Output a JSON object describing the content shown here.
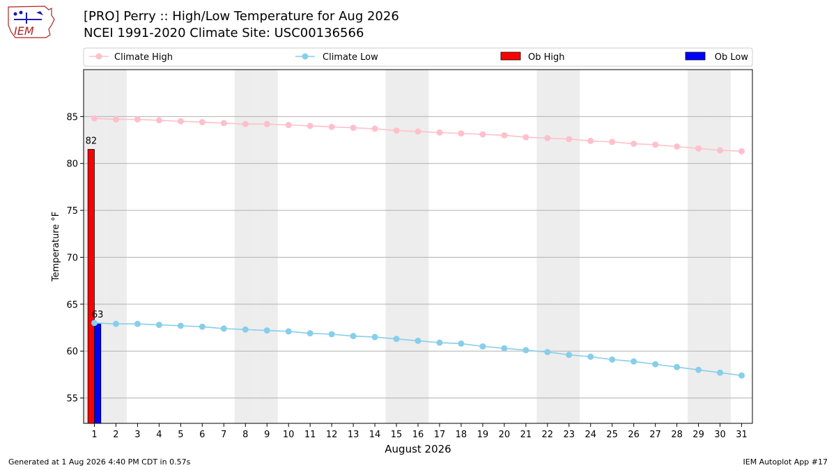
{
  "header": {
    "title_line1": "[PRO] Perry :: High/Low Temperature for Aug 2026",
    "title_line2": "NCEI 1991-2020 Climate Site: USC00136566",
    "logo_text": "IEM"
  },
  "footer": {
    "generated": "Generated at 1 Aug 2026 4:40 PM CDT in 0.57s",
    "app": "IEM Autoplot App #17"
  },
  "chart_data": {
    "type": "bar+line",
    "xlabel": "August 2026",
    "ylabel": "Temperature °F",
    "xlim": [
      0.5,
      31.5
    ],
    "ylim": [
      52.3,
      90.0
    ],
    "yticks": [
      55,
      60,
      65,
      70,
      75,
      80,
      85
    ],
    "days": [
      1,
      2,
      3,
      4,
      5,
      6,
      7,
      8,
      9,
      10,
      11,
      12,
      13,
      14,
      15,
      16,
      17,
      18,
      19,
      20,
      21,
      22,
      23,
      24,
      25,
      26,
      27,
      28,
      29,
      30,
      31
    ],
    "weekend_days": [
      1,
      2,
      8,
      9,
      15,
      16,
      22,
      23,
      29,
      30
    ],
    "grid": "horizontal",
    "legend_position": "top",
    "series": [
      {
        "name": "Climate High",
        "kind": "line",
        "color": "#ffc0cb",
        "values": [
          84.8,
          84.7,
          84.7,
          84.6,
          84.5,
          84.4,
          84.3,
          84.2,
          84.2,
          84.1,
          84.0,
          83.9,
          83.8,
          83.7,
          83.5,
          83.4,
          83.3,
          83.2,
          83.1,
          83.0,
          82.8,
          82.7,
          82.6,
          82.4,
          82.3,
          82.1,
          82.0,
          81.8,
          81.6,
          81.4,
          81.3
        ]
      },
      {
        "name": "Climate Low",
        "kind": "line",
        "color": "#87ceeb",
        "values": [
          63.0,
          62.9,
          62.9,
          62.8,
          62.7,
          62.6,
          62.4,
          62.3,
          62.2,
          62.1,
          61.9,
          61.8,
          61.6,
          61.5,
          61.3,
          61.1,
          60.9,
          60.8,
          60.5,
          60.3,
          60.1,
          59.9,
          59.6,
          59.4,
          59.1,
          58.9,
          58.6,
          58.3,
          58.0,
          57.7,
          57.4
        ]
      },
      {
        "name": "Ob High",
        "kind": "bar",
        "color": "#ff0000",
        "points": [
          {
            "day": 1,
            "value": 81.5,
            "label": "82"
          }
        ]
      },
      {
        "name": "Ob Low",
        "kind": "bar",
        "color": "#0000ff",
        "points": [
          {
            "day": 1,
            "value": 63.0,
            "label": "63"
          }
        ]
      }
    ]
  }
}
